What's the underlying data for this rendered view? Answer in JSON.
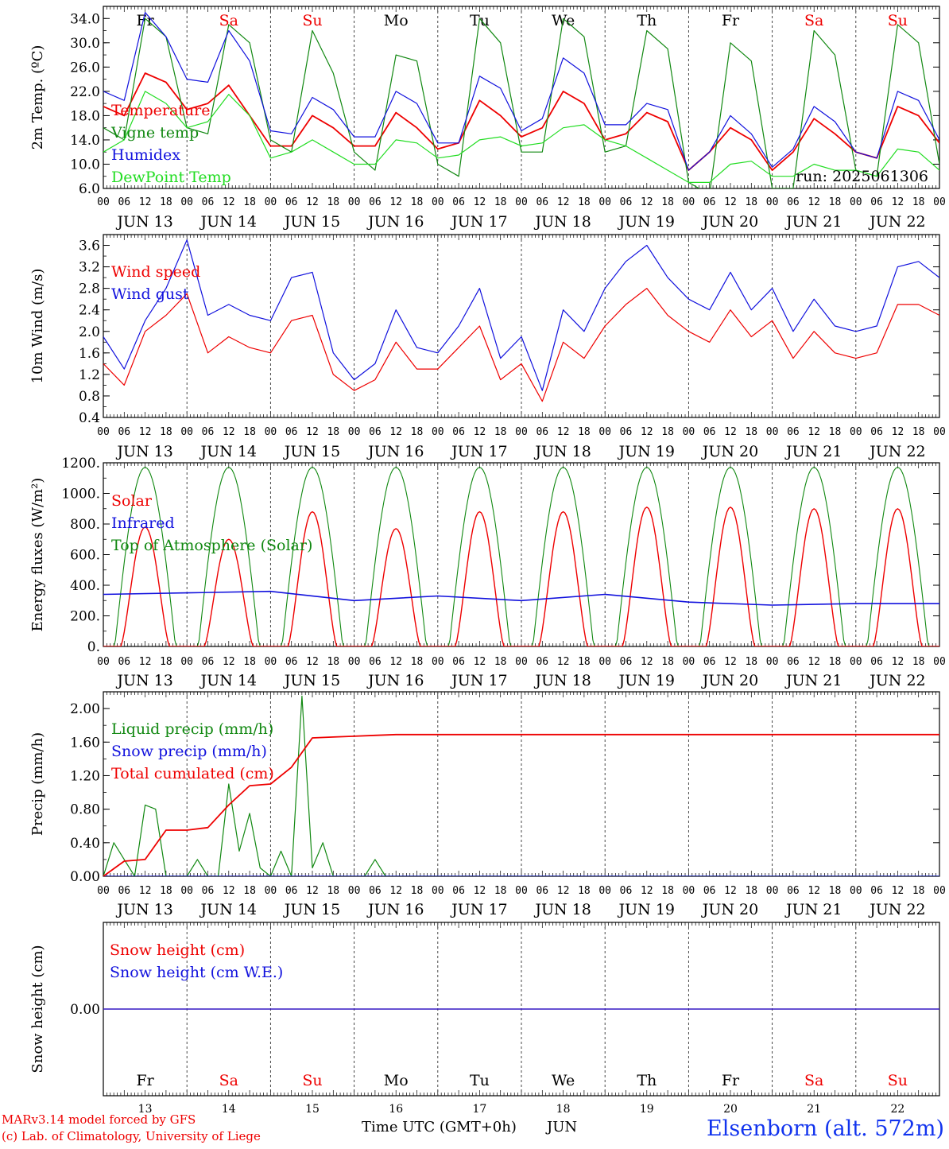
{
  "colors": {
    "red": "#ee0000",
    "green": "#118811",
    "lime": "#22dd22",
    "blue": "#1111dd",
    "black": "#000000"
  },
  "days": {
    "weekday": [
      "Fr",
      "Sa",
      "Su",
      "Mo",
      "Tu",
      "We",
      "Th",
      "Fr",
      "Sa",
      "Su"
    ],
    "weekend_flags": [
      false,
      true,
      true,
      false,
      false,
      false,
      false,
      false,
      true,
      true
    ],
    "date_labels": [
      "JUN 13",
      "JUN 14",
      "JUN 15",
      "JUN 16",
      "JUN 17",
      "JUN 18",
      "JUN 19",
      "JUN 20",
      "JUN 21",
      "JUN 22"
    ],
    "day_numbers": [
      "13",
      "14",
      "15",
      "16",
      "17",
      "18",
      "19",
      "20",
      "21",
      "22"
    ],
    "hour_labels": [
      "00",
      "06",
      "12",
      "18"
    ],
    "final_hour_label": "00"
  },
  "footer": {
    "credit_line1": "MARv3.14 model forced by GFS",
    "credit_line2": "(c) Lab. of Climatology, University of Liege",
    "time_axis_label": "Time UTC (GMT+0h)",
    "month_label": "JUN",
    "station": "Elsenborn (alt. 572m)"
  },
  "chart_data": [
    {
      "type": "line",
      "ylabel": "2m Temp. (ºC)",
      "ylim": [
        6,
        36
      ],
      "yticks": [
        "6.0",
        "10.0",
        "14.0",
        "18.0",
        "22.0",
        "26.0",
        "30.0",
        "34.0"
      ],
      "ytick_values": [
        6,
        10,
        14,
        18,
        22,
        26,
        30,
        34
      ],
      "annotation": "run: 2025061306",
      "x_unit": "hours since 2025-06-13 00 UTC",
      "series": [
        {
          "name": "Temperature",
          "color_key": "red",
          "x": [
            0,
            6,
            12,
            18,
            24,
            30,
            36,
            42,
            48,
            54,
            60,
            66,
            72,
            78,
            84,
            90,
            96,
            102,
            108,
            114,
            120,
            126,
            132,
            138,
            144,
            150,
            156,
            162,
            168,
            174,
            180,
            186,
            192,
            198,
            204,
            210,
            216,
            222,
            228,
            234,
            240
          ],
          "values": [
            19.5,
            18,
            25,
            23.5,
            19,
            20,
            23,
            18,
            13,
            13,
            18,
            16,
            13,
            13,
            18.5,
            16,
            12.5,
            13.5,
            20.5,
            18,
            14.5,
            16,
            22,
            20,
            14,
            15,
            18.5,
            17,
            9,
            12,
            16,
            14,
            9,
            12,
            17.5,
            15,
            12,
            11,
            19.5,
            18,
            13.5
          ]
        },
        {
          "name": "Vigne temp",
          "color_key": "green",
          "x": [
            0,
            6,
            12,
            18,
            24,
            30,
            36,
            42,
            48,
            54,
            60,
            66,
            72,
            78,
            84,
            90,
            96,
            102,
            108,
            114,
            120,
            126,
            132,
            138,
            144,
            150,
            156,
            162,
            168,
            174,
            180,
            186,
            192,
            198,
            204,
            210,
            216,
            222,
            228,
            234,
            240
          ],
          "values": [
            16,
            14,
            34,
            31,
            16,
            15,
            33,
            30,
            14,
            12,
            32,
            25,
            12,
            9,
            28,
            27,
            10,
            8,
            34,
            30,
            12,
            12,
            34,
            31,
            12,
            13,
            32,
            29,
            7,
            5,
            30,
            27,
            6,
            6,
            32,
            28,
            9,
            8,
            33,
            30,
            10
          ]
        },
        {
          "name": "Humidex",
          "color_key": "blue",
          "x": [
            0,
            6,
            12,
            18,
            24,
            30,
            36,
            42,
            48,
            54,
            60,
            66,
            72,
            78,
            84,
            90,
            96,
            102,
            108,
            114,
            120,
            126,
            132,
            138,
            144,
            150,
            156,
            162,
            168,
            174,
            180,
            186,
            192,
            198,
            204,
            210,
            216,
            222,
            228,
            234,
            240
          ],
          "values": [
            22,
            20.5,
            35,
            31,
            24,
            23.5,
            32,
            27,
            15.5,
            15,
            21,
            19,
            14.5,
            14.5,
            22,
            20,
            13.5,
            13.5,
            24.5,
            22.5,
            15.5,
            17.5,
            27.5,
            25,
            16.5,
            16.5,
            20,
            19,
            9,
            12,
            18,
            15,
            9.5,
            12.5,
            19.5,
            17,
            12,
            11,
            22,
            20.5,
            14
          ]
        },
        {
          "name": "DewPoint Temp",
          "color_key": "lime",
          "x": [
            0,
            6,
            12,
            18,
            24,
            30,
            36,
            42,
            48,
            54,
            60,
            66,
            72,
            78,
            84,
            90,
            96,
            102,
            108,
            114,
            120,
            126,
            132,
            138,
            144,
            150,
            156,
            162,
            168,
            174,
            180,
            186,
            192,
            198,
            204,
            210,
            216,
            222,
            228,
            234,
            240
          ],
          "values": [
            12,
            14,
            22,
            20,
            16,
            17,
            21.5,
            18,
            11,
            12,
            14,
            12,
            10,
            10,
            14,
            13.5,
            11,
            11.5,
            14,
            14.5,
            13,
            13.5,
            16,
            16.5,
            14,
            13,
            11,
            9,
            7,
            7,
            10,
            10.5,
            8,
            8,
            10,
            9,
            9,
            8,
            12.5,
            12,
            9
          ]
        }
      ]
    },
    {
      "type": "line",
      "ylabel": "10m Wind (m/s)",
      "ylim": [
        0.4,
        3.8
      ],
      "yticks": [
        "0.4",
        "0.8",
        "1.2",
        "1.6",
        "2.0",
        "2.4",
        "2.8",
        "3.2",
        "3.6"
      ],
      "ytick_values": [
        0.4,
        0.8,
        1.2,
        1.6,
        2.0,
        2.4,
        2.8,
        3.2,
        3.6
      ],
      "series": [
        {
          "name": "Wind speed",
          "color_key": "red",
          "x": [
            0,
            6,
            12,
            18,
            24,
            30,
            36,
            42,
            48,
            54,
            60,
            66,
            72,
            78,
            84,
            90,
            96,
            102,
            108,
            114,
            120,
            126,
            132,
            138,
            144,
            150,
            156,
            162,
            168,
            174,
            180,
            186,
            192,
            198,
            204,
            210,
            216,
            222,
            228,
            234,
            240
          ],
          "values": [
            1.4,
            1.0,
            2.0,
            2.3,
            2.7,
            1.6,
            1.9,
            1.7,
            1.6,
            2.2,
            2.3,
            1.2,
            0.9,
            1.1,
            1.8,
            1.3,
            1.3,
            1.7,
            2.1,
            1.1,
            1.4,
            0.7,
            1.8,
            1.5,
            2.1,
            2.5,
            2.8,
            2.3,
            2.0,
            1.8,
            2.4,
            1.9,
            2.2,
            1.5,
            2.0,
            1.6,
            1.5,
            1.6,
            2.5,
            2.5,
            2.3
          ]
        },
        {
          "name": "Wind gust",
          "color_key": "blue",
          "x": [
            0,
            6,
            12,
            18,
            24,
            30,
            36,
            42,
            48,
            54,
            60,
            66,
            72,
            78,
            84,
            90,
            96,
            102,
            108,
            114,
            120,
            126,
            132,
            138,
            144,
            150,
            156,
            162,
            168,
            174,
            180,
            186,
            192,
            198,
            204,
            210,
            216,
            222,
            228,
            234,
            240
          ],
          "values": [
            1.9,
            1.3,
            2.2,
            2.8,
            3.7,
            2.3,
            2.5,
            2.3,
            2.2,
            3.0,
            3.1,
            1.6,
            1.1,
            1.4,
            2.4,
            1.7,
            1.6,
            2.1,
            2.8,
            1.5,
            1.9,
            0.9,
            2.4,
            2.0,
            2.8,
            3.3,
            3.6,
            3.0,
            2.6,
            2.4,
            3.1,
            2.4,
            2.8,
            2.0,
            2.6,
            2.1,
            2.0,
            2.1,
            3.2,
            3.3,
            3.0
          ]
        }
      ]
    },
    {
      "type": "line",
      "ylabel": "Energy fluxes (W/m²)",
      "ylim": [
        0,
        1200
      ],
      "yticks": [
        "0.",
        "200.",
        "400.",
        "600.",
        "800.",
        "1000.",
        "1200."
      ],
      "ytick_values": [
        0,
        200,
        400,
        600,
        800,
        1000,
        1200
      ],
      "solar_peak_values": [
        780,
        700,
        880,
        770,
        880,
        880,
        910,
        910,
        900,
        900
      ],
      "toa_peak_value": 1170,
      "infrared": {
        "x": [
          0,
          24,
          48,
          72,
          96,
          120,
          144,
          168,
          192,
          216,
          240
        ],
        "values": [
          340,
          350,
          360,
          300,
          330,
          300,
          340,
          290,
          270,
          280,
          280
        ]
      },
      "series": [
        {
          "name": "Solar",
          "color_key": "red"
        },
        {
          "name": "Infrared",
          "color_key": "blue"
        },
        {
          "name": "Top of Atmosphere (Solar)",
          "color_key": "green"
        }
      ]
    },
    {
      "type": "line",
      "ylabel": "Precip (mm/h)",
      "ylim": [
        0,
        2.2
      ],
      "yticks": [
        "0.00",
        "0.40",
        "0.80",
        "1.20",
        "1.60",
        "2.00"
      ],
      "ytick_values": [
        0,
        0.4,
        0.8,
        1.2,
        1.6,
        2.0
      ],
      "series": [
        {
          "name": "Liquid precip (mm/h)",
          "color_key": "green",
          "x": [
            0,
            3,
            6,
            9,
            12,
            15,
            18,
            21,
            24,
            27,
            30,
            33,
            36,
            39,
            42,
            45,
            48,
            51,
            54,
            57,
            60,
            63,
            66,
            69,
            72,
            75,
            78,
            81,
            84,
            240
          ],
          "values": [
            0,
            0.4,
            0.2,
            0,
            0.85,
            0.8,
            0,
            0,
            0,
            0.2,
            0,
            0,
            1.1,
            0.3,
            0.75,
            0.1,
            0,
            0.3,
            0,
            2.15,
            0.1,
            0.4,
            0,
            0,
            0,
            0,
            0.2,
            0,
            0,
            0
          ]
        },
        {
          "name": "Snow precip (mm/h)",
          "color_key": "blue",
          "x": [
            0,
            240
          ],
          "values": [
            0,
            0
          ]
        },
        {
          "name": "Total cumulated (cm)",
          "color_key": "red",
          "x": [
            0,
            6,
            12,
            18,
            24,
            30,
            36,
            42,
            48,
            54,
            60,
            66,
            72,
            78,
            84,
            240
          ],
          "values": [
            0,
            0.18,
            0.2,
            0.55,
            0.55,
            0.58,
            0.85,
            1.08,
            1.1,
            1.3,
            1.65,
            1.66,
            1.67,
            1.68,
            1.69,
            1.69
          ]
        }
      ]
    },
    {
      "type": "line",
      "ylabel": "Snow height (cm)",
      "ylim": [
        -1,
        1
      ],
      "yticks": [
        "0.00"
      ],
      "ytick_values": [
        0
      ],
      "series": [
        {
          "name": "Snow height (cm)",
          "color_key": "red",
          "x": [
            0,
            240
          ],
          "values": [
            0,
            0
          ]
        },
        {
          "name": "Snow height (cm W.E.)",
          "color_key": "blue",
          "x": [
            0,
            240
          ],
          "values": [
            0,
            0
          ]
        }
      ]
    }
  ]
}
